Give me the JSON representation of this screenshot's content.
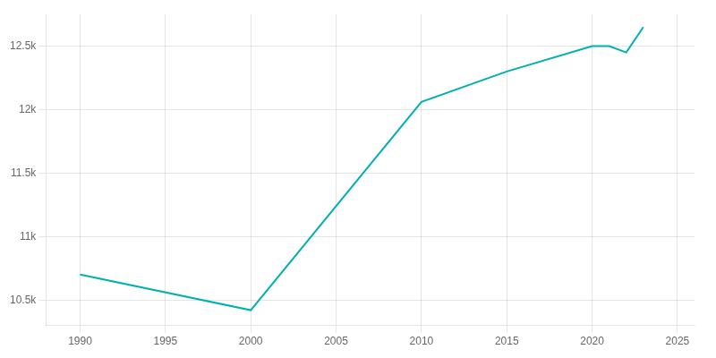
{
  "chart_data": {
    "type": "line",
    "x": [
      1990,
      2000,
      2010,
      2015,
      2020,
      2021,
      2022,
      2023
    ],
    "values": [
      10700,
      10420,
      12060,
      12300,
      12500,
      12500,
      12450,
      12650
    ],
    "color": "#00b0b0",
    "xlim": [
      1988,
      2026
    ],
    "xticks": [
      1990,
      1995,
      2000,
      2005,
      2010,
      2015,
      2020,
      2025
    ],
    "ylim": [
      10300,
      12750
    ],
    "yticks": [
      {
        "value": 10500,
        "label": "10.5k"
      },
      {
        "value": 11000,
        "label": "11k"
      },
      {
        "value": 11500,
        "label": "11.5k"
      },
      {
        "value": 12000,
        "label": "12k"
      },
      {
        "value": 12500,
        "label": "12.5k"
      }
    ],
    "grid": true
  }
}
